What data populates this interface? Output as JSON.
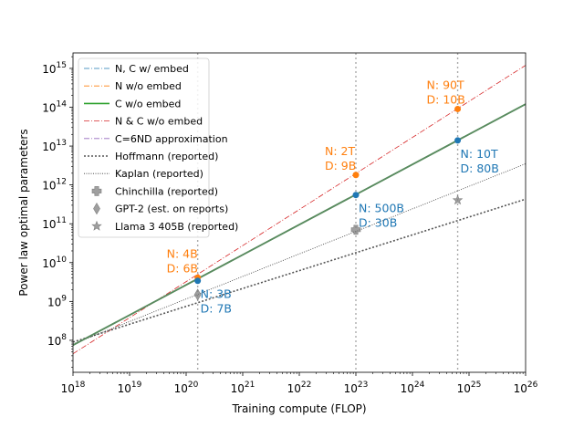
{
  "chart_data": {
    "type": "line",
    "xlabel": "Training compute (FLOP)",
    "ylabel": "Power law optimal parameters",
    "xscale": "log",
    "yscale": "log",
    "xlim": [
      1e+18,
      1e+26
    ],
    "ylim": [
      15000000.0,
      2500000000000000.0
    ],
    "x_ticks": [
      {
        "value": 1e+18,
        "base": "10",
        "exp": "18"
      },
      {
        "value": 1e+19,
        "base": "10",
        "exp": "19"
      },
      {
        "value": 1e+20,
        "base": "10",
        "exp": "20"
      },
      {
        "value": 1e+21,
        "base": "10",
        "exp": "21"
      },
      {
        "value": 1e+22,
        "base": "10",
        "exp": "22"
      },
      {
        "value": 1e+23,
        "base": "10",
        "exp": "23"
      },
      {
        "value": 1e+24,
        "base": "10",
        "exp": "24"
      },
      {
        "value": 1e+25,
        "base": "10",
        "exp": "25"
      },
      {
        "value": 1e+26,
        "base": "10",
        "exp": "26"
      }
    ],
    "y_ticks": [
      {
        "value": 100000000.0,
        "base": "10",
        "exp": "8"
      },
      {
        "value": 1000000000.0,
        "base": "10",
        "exp": "9"
      },
      {
        "value": 10000000000.0,
        "base": "10",
        "exp": "10"
      },
      {
        "value": 100000000000.0,
        "base": "10",
        "exp": "11"
      },
      {
        "value": 1000000000000.0,
        "base": "10",
        "exp": "12"
      },
      {
        "value": 10000000000000.0,
        "base": "10",
        "exp": "13"
      },
      {
        "value": 100000000000000.0,
        "base": "10",
        "exp": "14"
      },
      {
        "value": 1000000000000000.0,
        "base": "10",
        "exp": "15"
      }
    ],
    "vlines": [
      1.6e+20,
      1e+23,
      6.3e+24
    ],
    "legend_position": "upper-left",
    "series": [
      {
        "name": "N, C w/ embed",
        "kind": "line",
        "color": "#1f77b4",
        "dash": "6 2 1 2",
        "width": 0.8,
        "x": [
          1e+18,
          1e+26
        ],
        "y": [
          75000000.0,
          120000000000000.0
        ],
        "legend": true,
        "draw": true
      },
      {
        "name": "N w/o embed",
        "kind": "line",
        "color": "#ff7f0e",
        "dash": "6 2 1 2",
        "width": 0.8,
        "x": [
          1e+18,
          1e+26
        ],
        "y": [
          75000000.0,
          120000000000000.0
        ],
        "legend": true,
        "draw": true
      },
      {
        "name": "C w/o embed",
        "kind": "line",
        "color": "#2ca02c",
        "dash": "",
        "width": 1.6,
        "x": [
          1e+18,
          1e+26
        ],
        "y": [
          75000000.0,
          120000000000000.0
        ],
        "legend": true,
        "draw": true
      },
      {
        "name": "N & C w/o embed",
        "kind": "line",
        "color": "#d62728",
        "dash": "6 2 1 2",
        "width": 0.8,
        "x": [
          1e+18,
          1e+26
        ],
        "y": [
          45000000.0,
          1200000000000000.0
        ],
        "legend": true,
        "draw": true
      },
      {
        "name": "C=6ND approximation",
        "kind": "line",
        "color": "#9467bd",
        "dash": "6 2 1 2",
        "width": 0.8,
        "x": [
          1e+18,
          1e+26
        ],
        "y": [
          75000000.0,
          120000000000000.0
        ],
        "legend": true,
        "draw": true
      },
      {
        "name": "Hoffmann (reported)",
        "kind": "line",
        "color": "#555555",
        "dash": "2 2",
        "width": 1.6,
        "x": [
          1e+18,
          1e+26
        ],
        "y": [
          90000000.0,
          430000000000.0
        ],
        "legend": true,
        "draw": true
      },
      {
        "name": "Kaplan (reported)",
        "kind": "line",
        "color": "#333333",
        "dash": "1 1.5",
        "width": 0.8,
        "x": [
          1e+18,
          1e+26
        ],
        "y": [
          80000000.0,
          3500000000000.0
        ],
        "legend": true,
        "draw": true
      },
      {
        "name": "",
        "kind": "line",
        "color": "#5a8a60",
        "dash": "",
        "width": 1.8,
        "x": [
          1e+18,
          1e+26
        ],
        "y": [
          75000000.0,
          120000000000000.0
        ],
        "legend": false,
        "draw": true
      }
    ],
    "points": [
      {
        "name": "Chinchilla (reported)",
        "marker": "plus",
        "color": "#7f7f7f",
        "x": 1e+23,
        "y": 70000000000.0,
        "legend": true
      },
      {
        "name": "GPT-2 (est. on reports)",
        "marker": "diamond",
        "color": "#7f7f7f",
        "x": 1.6e+20,
        "y": 1500000000.0,
        "legend": true
      },
      {
        "name": "Llama 3 405B (reported)",
        "marker": "star",
        "color": "#7f7f7f",
        "x": 6.3e+24,
        "y": 405000000000.0,
        "legend": true
      },
      {
        "name": "",
        "marker": "circle",
        "color": "#ff7f0e",
        "x": 1.6e+20,
        "y": 4100000000.0,
        "legend": false
      },
      {
        "name": "",
        "marker": "circle",
        "color": "#ff7f0e",
        "x": 1e+23,
        "y": 1800000000000.0,
        "legend": false
      },
      {
        "name": "",
        "marker": "circle",
        "color": "#ff7f0e",
        "x": 6.3e+24,
        "y": 90000000000000.0,
        "legend": false
      },
      {
        "name": "",
        "marker": "circle",
        "color": "#1f77b4",
        "x": 1.6e+20,
        "y": 3400000000.0,
        "legend": false
      },
      {
        "name": "",
        "marker": "circle",
        "color": "#1f77b4",
        "x": 1e+23,
        "y": 550000000000.0,
        "legend": false
      },
      {
        "name": "",
        "marker": "circle",
        "color": "#1f77b4",
        "x": 6.3e+24,
        "y": 14000000000000.0,
        "legend": false
      }
    ],
    "annotations": [
      {
        "lines": [
          "N: 4B",
          "D: 6B"
        ],
        "color": "#ff7f0e",
        "x": 1.6e+20,
        "y": 4100000000.0,
        "anchor": "above-left"
      },
      {
        "lines": [
          "N: 2T",
          "D: 9B"
        ],
        "color": "#ff7f0e",
        "x": 1e+23,
        "y": 1800000000000.0,
        "anchor": "above-left"
      },
      {
        "lines": [
          "N: 90T",
          "D: 10B"
        ],
        "color": "#ff7f0e",
        "x": 6.3e+24,
        "y": 90000000000000.0,
        "anchor": "above-left"
      },
      {
        "lines": [
          "N: 3B",
          "D: 7B"
        ],
        "color": "#1f77b4",
        "x": 1.6e+20,
        "y": 3400000000.0,
        "anchor": "below-right"
      },
      {
        "lines": [
          "N: 500B",
          "D: 30B"
        ],
        "color": "#1f77b4",
        "x": 1e+23,
        "y": 550000000000.0,
        "anchor": "below-right"
      },
      {
        "lines": [
          "N: 10T",
          "D: 80B"
        ],
        "color": "#1f77b4",
        "x": 6.3e+24,
        "y": 14000000000000.0,
        "anchor": "below-right"
      }
    ]
  }
}
